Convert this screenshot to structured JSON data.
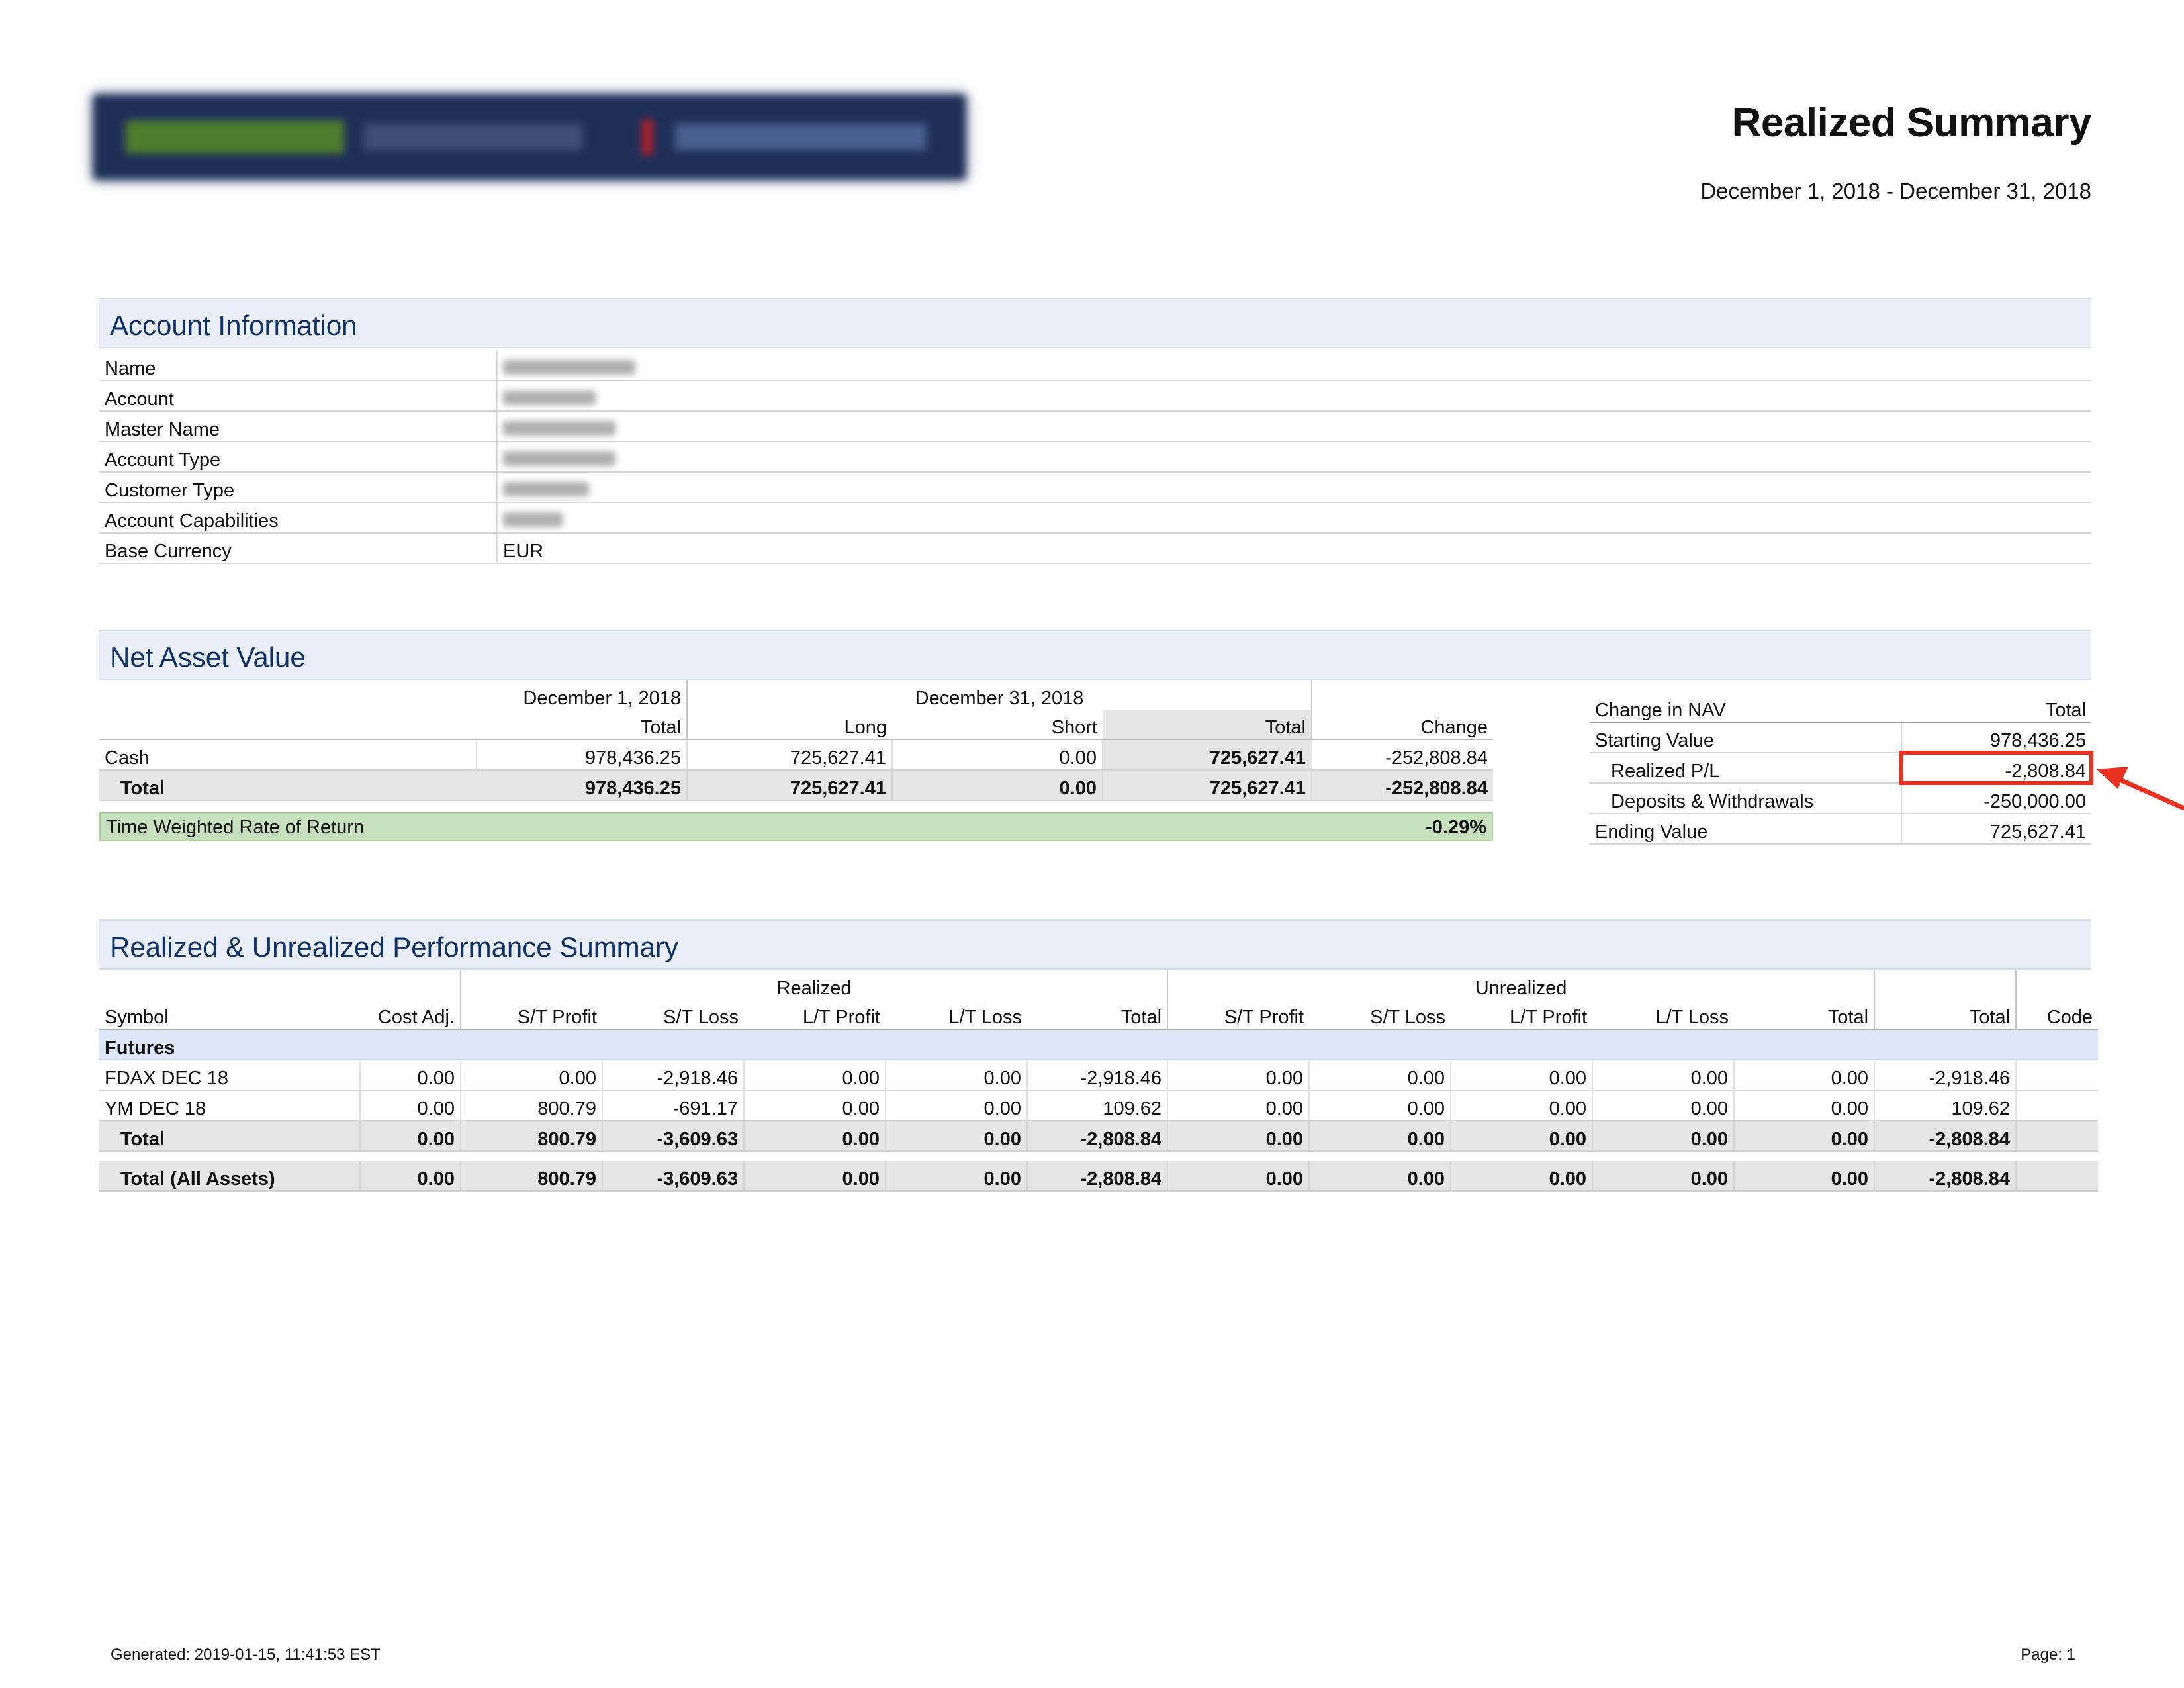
{
  "header": {
    "title": "Realized Summary",
    "date_range": "December 1, 2018 - December 31, 2018"
  },
  "account_info": {
    "heading": "Account Information",
    "rows": [
      {
        "label": "Name",
        "value": ""
      },
      {
        "label": "Account",
        "value": ""
      },
      {
        "label": "Master Name",
        "value": ""
      },
      {
        "label": "Account Type",
        "value": ""
      },
      {
        "label": "Customer Type",
        "value": ""
      },
      {
        "label": "Account Capabilities",
        "value": ""
      },
      {
        "label": "Base Currency",
        "value": "EUR"
      }
    ]
  },
  "nav": {
    "heading": "Net Asset Value",
    "period1": "December 1, 2018",
    "period2": "December 31, 2018",
    "col_total": "Total",
    "col_long": "Long",
    "col_short": "Short",
    "col_change": "Change",
    "rows": [
      {
        "label": "Cash",
        "start_total": "978,436.25",
        "long": "725,627.41",
        "short": "0.00",
        "end_total": "725,627.41",
        "change": "-252,808.84"
      },
      {
        "label": "Total",
        "start_total": "978,436.25",
        "long": "725,627.41",
        "short": "0.00",
        "end_total": "725,627.41",
        "change": "-252,808.84"
      }
    ],
    "twrr_label": "Time Weighted Rate of Return",
    "twrr_value": "-0.29%"
  },
  "change_in_nav": {
    "col_label": "Change in NAV",
    "col_total": "Total",
    "rows": [
      {
        "label": "Starting Value",
        "value": "978,436.25"
      },
      {
        "label": "Realized P/L",
        "value": "-2,808.84"
      },
      {
        "label": "Deposits & Withdrawals",
        "value": "-250,000.00"
      },
      {
        "label": "Ending Value",
        "value": "725,627.41"
      }
    ]
  },
  "performance": {
    "heading": "Realized & Unrealized Performance Summary",
    "group_realized": "Realized",
    "group_unrealized": "Unrealized",
    "columns": [
      "Symbol",
      "Cost Adj.",
      "S/T Profit",
      "S/T Loss",
      "L/T Profit",
      "L/T Loss",
      "Total",
      "S/T Profit",
      "S/T Loss",
      "L/T Profit",
      "L/T Loss",
      "Total",
      "Total",
      "Code"
    ],
    "category": "Futures",
    "rows": [
      [
        "FDAX DEC 18",
        "0.00",
        "0.00",
        "-2,918.46",
        "0.00",
        "0.00",
        "-2,918.46",
        "0.00",
        "0.00",
        "0.00",
        "0.00",
        "0.00",
        "-2,918.46",
        ""
      ],
      [
        "YM DEC 18",
        "0.00",
        "800.79",
        "-691.17",
        "0.00",
        "0.00",
        "109.62",
        "0.00",
        "0.00",
        "0.00",
        "0.00",
        "0.00",
        "109.62",
        ""
      ]
    ],
    "total": [
      "Total",
      "0.00",
      "800.79",
      "-3,609.63",
      "0.00",
      "0.00",
      "-2,808.84",
      "0.00",
      "0.00",
      "0.00",
      "0.00",
      "0.00",
      "-2,808.84",
      ""
    ],
    "total_all": [
      "Total (All Assets)",
      "0.00",
      "800.79",
      "-3,609.63",
      "0.00",
      "0.00",
      "-2,808.84",
      "0.00",
      "0.00",
      "0.00",
      "0.00",
      "0.00",
      "-2,808.84",
      ""
    ]
  },
  "footer": {
    "generated": "Generated: 2019-01-15, 11:41:53 EST",
    "page": "Page: 1"
  },
  "colors": {
    "section_header_bg": "#e9eef8",
    "section_header_text": "#0d3269",
    "twrr_bg": "#c7e0bd",
    "highlight_annotation": "#e8321f"
  }
}
